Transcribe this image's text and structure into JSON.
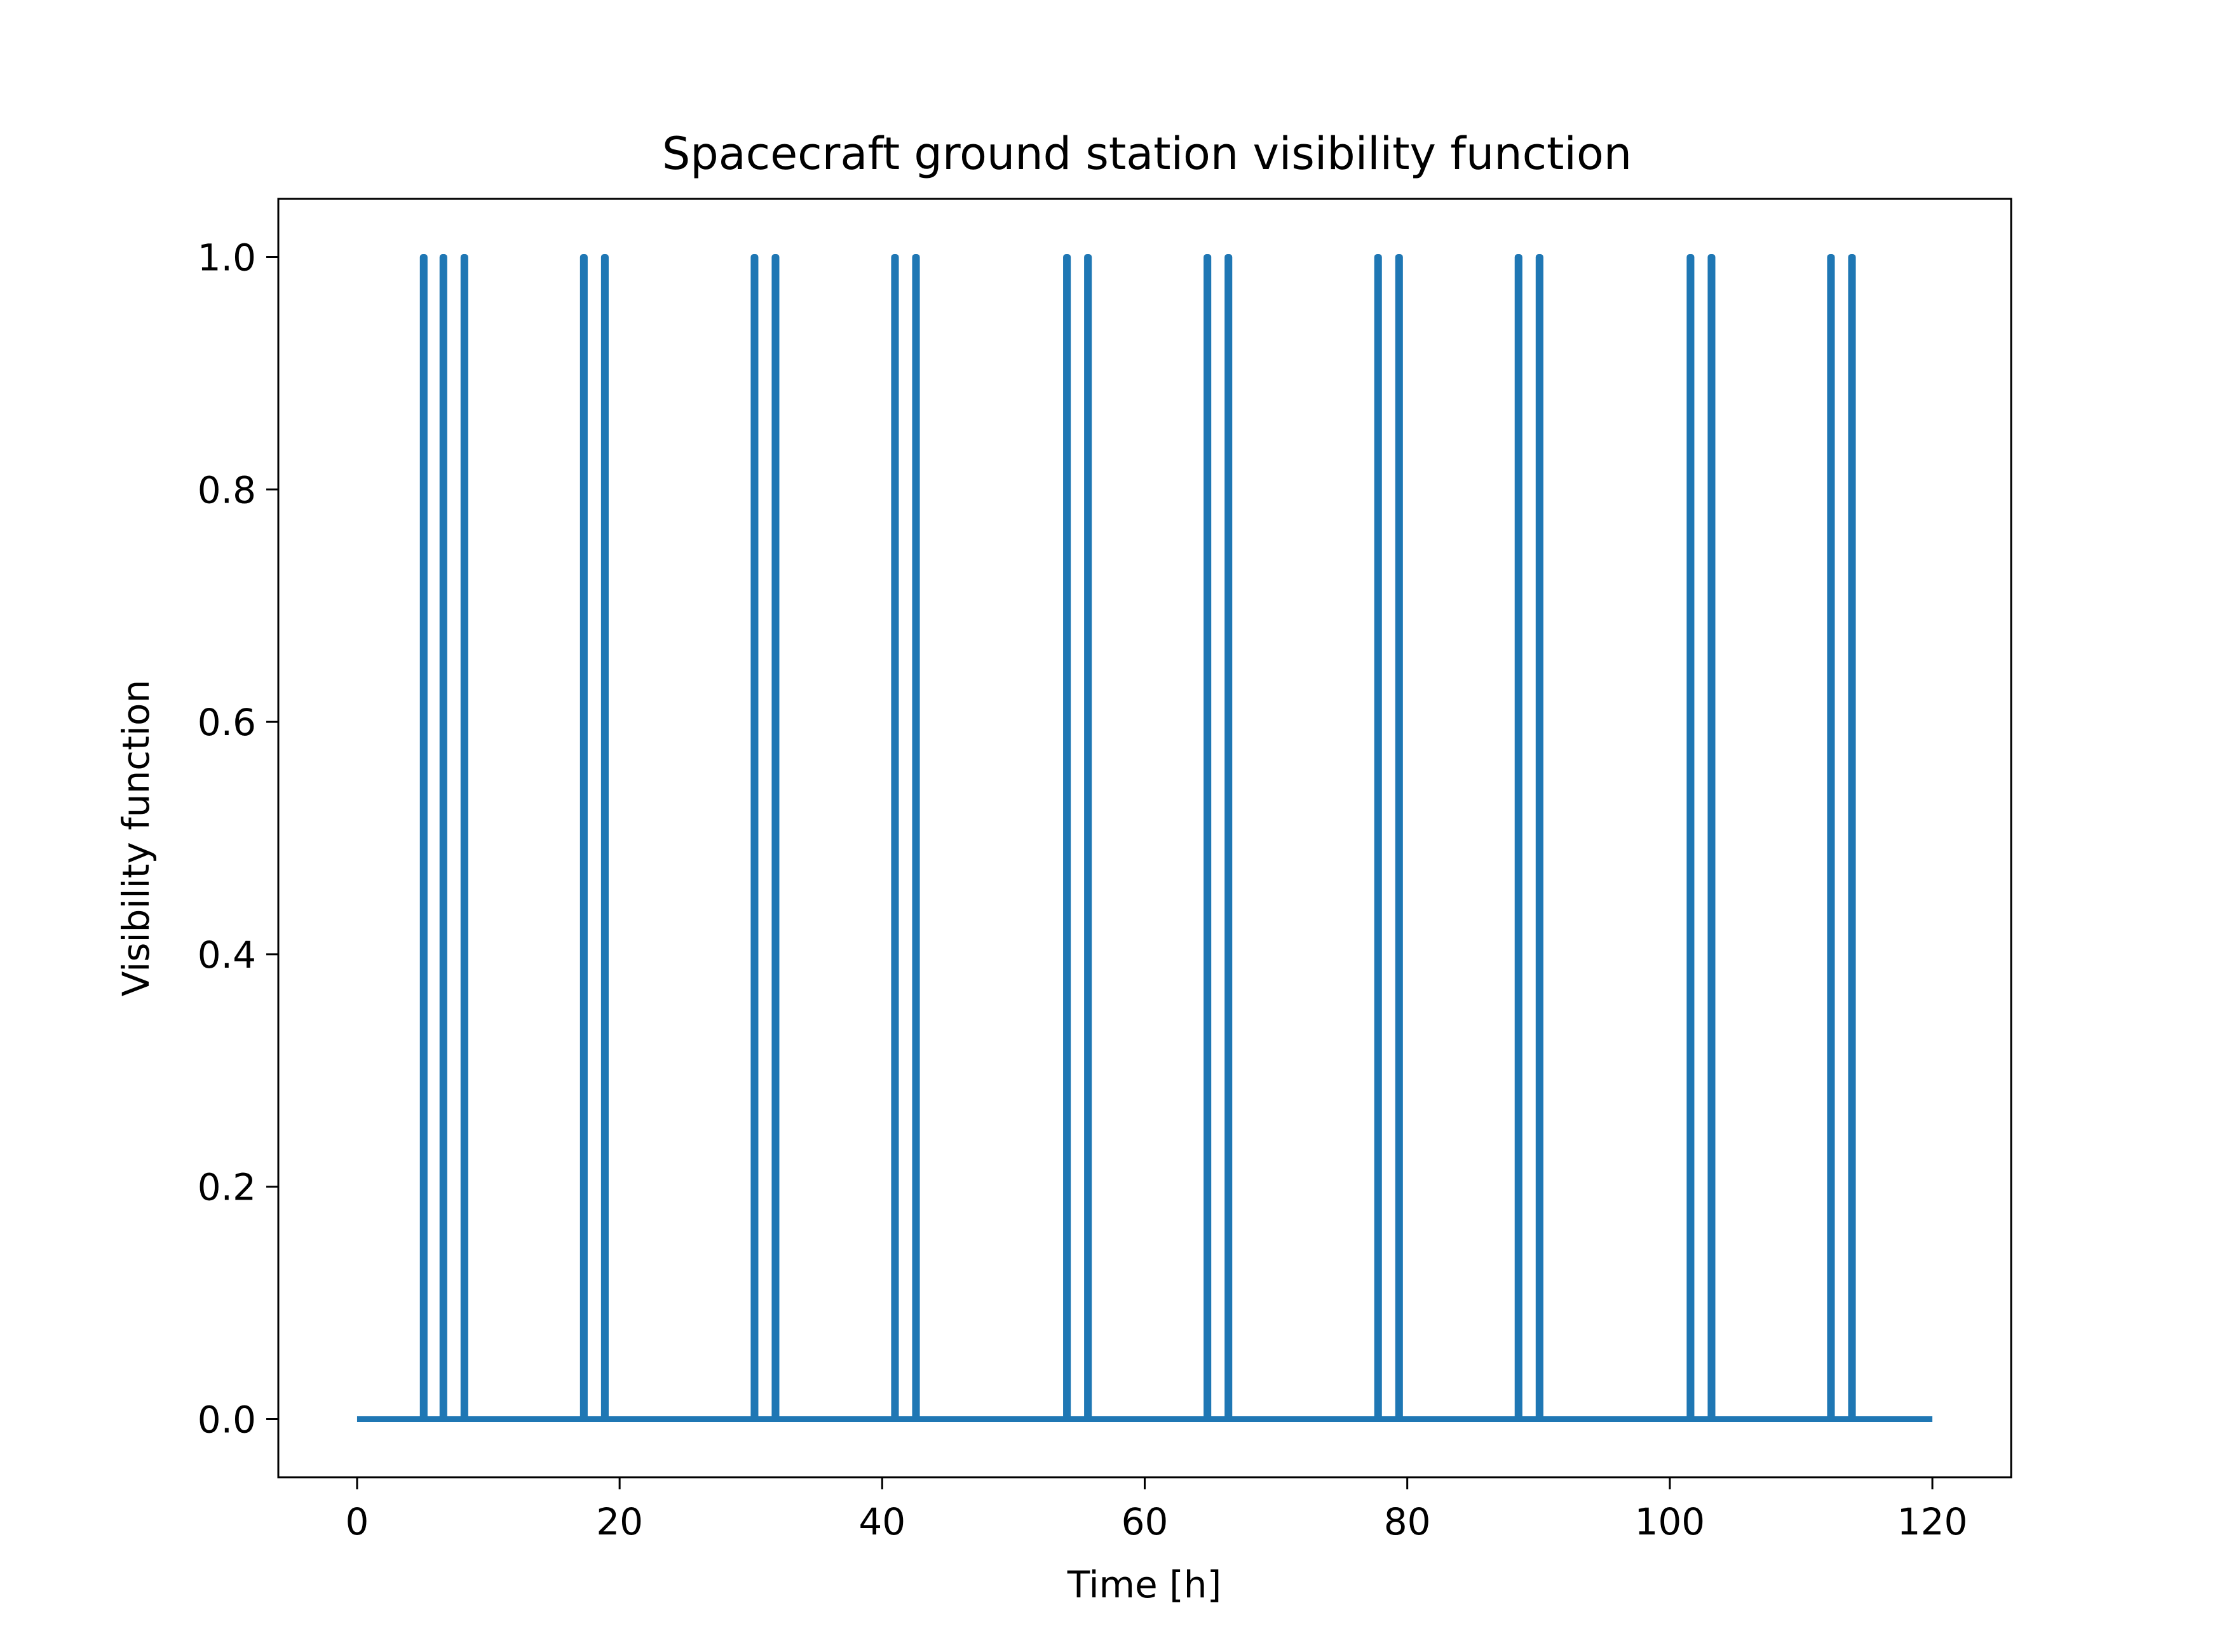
{
  "chart_data": {
    "type": "line",
    "title": "Spacecraft ground station visibility function",
    "xlabel": "Time [h]",
    "ylabel": "Visibility function",
    "xlim": [
      -6,
      126
    ],
    "ylim": [
      -0.05,
      1.05
    ],
    "xticks": [
      0,
      20,
      40,
      60,
      80,
      100,
      120
    ],
    "xtick_labels": [
      "0",
      "20",
      "40",
      "60",
      "80",
      "100",
      "120"
    ],
    "yticks": [
      0.0,
      0.2,
      0.4,
      0.6,
      0.8,
      1.0
    ],
    "ytick_labels": [
      "0.0",
      "0.2",
      "0.4",
      "0.6",
      "0.8",
      "1.0"
    ],
    "grid": false,
    "x_range": [
      0,
      120
    ],
    "series": [
      {
        "color": "#1f77b4",
        "baseline": 0.0,
        "pulse_height": 1.0,
        "pulse_times": [
          5.0,
          6.5,
          8.1,
          17.2,
          18.8,
          30.2,
          31.8,
          40.9,
          42.5,
          54.0,
          55.6,
          64.7,
          66.3,
          77.7,
          79.3,
          88.4,
          90.0,
          101.5,
          103.1,
          112.2,
          113.8
        ]
      }
    ]
  }
}
